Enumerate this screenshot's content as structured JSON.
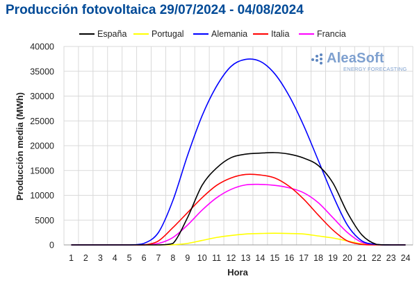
{
  "chart_data": {
    "type": "line",
    "title": "Producción fotovoltaica 29/07/2024 - 04/08/2024",
    "xlabel": "Hora",
    "ylabel": "Producción media (MWh)",
    "ylim": [
      0,
      40000
    ],
    "yticks": [
      0,
      5000,
      10000,
      15000,
      20000,
      25000,
      30000,
      35000,
      40000
    ],
    "xlim": [
      1,
      24
    ],
    "grid": true,
    "legend_position": "top",
    "x": [
      1,
      2,
      3,
      4,
      5,
      6,
      7,
      8,
      9,
      10,
      11,
      12,
      13,
      14,
      15,
      16,
      17,
      18,
      19,
      20,
      21,
      22,
      23,
      24
    ],
    "categories": [
      "1",
      "2",
      "3",
      "4",
      "5",
      "6",
      "7",
      "8",
      "9",
      "10",
      "11",
      "12",
      "13",
      "14",
      "15",
      "16",
      "17",
      "18",
      "19",
      "20",
      "21",
      "22",
      "23",
      "24"
    ],
    "series": [
      {
        "name": "España",
        "color": "#000000",
        "values": [
          0,
          0,
          0,
          0,
          0,
          0,
          0,
          300,
          5500,
          12000,
          15500,
          17600,
          18300,
          18500,
          18600,
          18300,
          17500,
          16000,
          12500,
          6500,
          2000,
          100,
          0,
          0
        ]
      },
      {
        "name": "Portugal",
        "color": "#ffff00",
        "values": [
          0,
          0,
          0,
          0,
          0,
          0,
          0,
          30,
          300,
          900,
          1500,
          1900,
          2200,
          2300,
          2350,
          2300,
          2200,
          1800,
          1400,
          800,
          200,
          0,
          0,
          0
        ]
      },
      {
        "name": "Alemania",
        "color": "#0000ff",
        "values": [
          0,
          0,
          0,
          0,
          0,
          300,
          2500,
          9000,
          18000,
          26000,
          32000,
          36000,
          37400,
          37000,
          34500,
          30000,
          24000,
          17000,
          10000,
          4000,
          800,
          100,
          0,
          0
        ]
      },
      {
        "name": "Italia",
        "color": "#ff0000",
        "values": [
          0,
          0,
          0,
          0,
          0,
          0,
          800,
          3500,
          6500,
          9500,
          12000,
          13500,
          14200,
          14100,
          13500,
          11800,
          9200,
          6000,
          3000,
          800,
          100,
          0,
          0,
          0
        ]
      },
      {
        "name": "Francia",
        "color": "#ff00ff",
        "values": [
          0,
          0,
          0,
          0,
          0,
          0,
          300,
          1500,
          4000,
          7000,
          9500,
          11200,
          12100,
          12200,
          12000,
          11500,
          10500,
          8500,
          5500,
          2500,
          500,
          50,
          0,
          0
        ]
      }
    ]
  },
  "watermark": {
    "main": "AleaSoft",
    "sub": "ENERGY FORECASTING",
    "color": "#7ea0cf"
  }
}
